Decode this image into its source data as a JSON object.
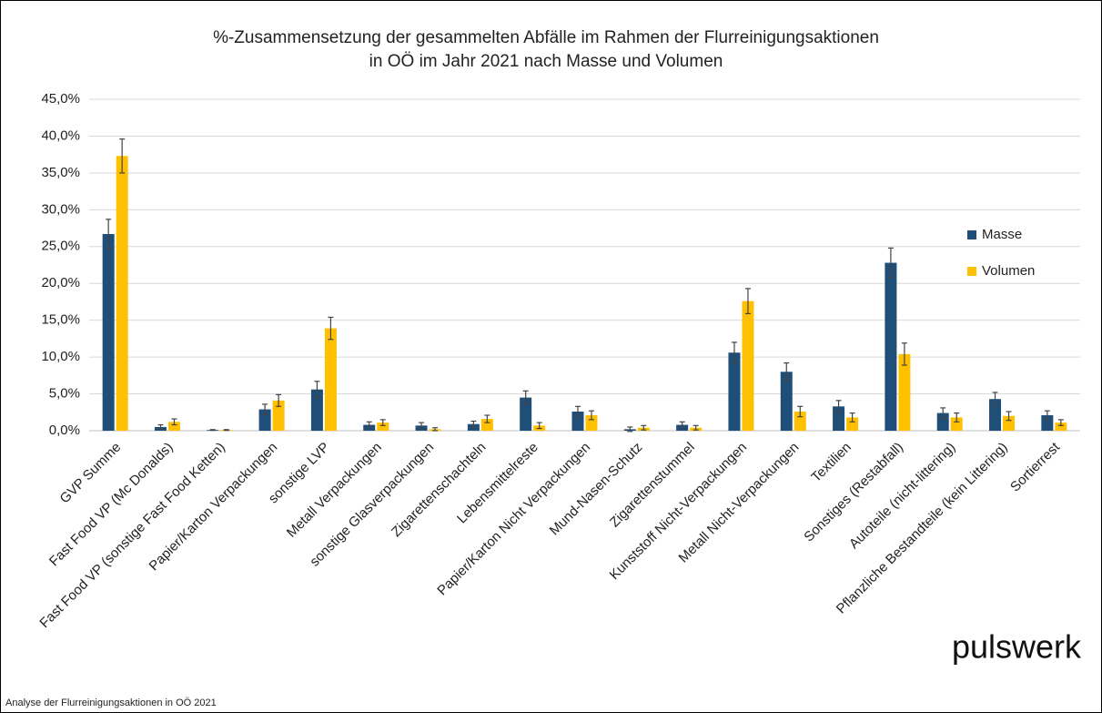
{
  "chart_data": {
    "type": "bar",
    "title": [
      "%-Zusammensetzung der gesammelten Abfälle im Rahmen der Flurreinigungsaktionen",
      "in OÖ im Jahr 2021 nach Masse und Volumen"
    ],
    "categories": [
      "GVP Summe",
      "Fast Food VP (Mc Donalds)",
      "Fast Food VP (sonstige Fast Food Ketten)",
      "Papier/Karton Verpackungen",
      "sonstige LVP",
      "Metall Verpackungen",
      "sonstige Glasverpackungen",
      "Zigarettenschachteln",
      "Lebensmittelreste",
      "Papier/Karton Nicht Verpackungen",
      "Mund-Nasen-Schutz",
      "Zigarettenstummel",
      "Kunststoff Nicht-Verpackungen",
      "Metall Nicht-Verpackungen",
      "Textilien",
      "Sonstiges (Restabfall)",
      "Autoteile (nicht-littering)",
      "Pflanzliche Bestandteile (kein Littering)",
      "Sortierrest"
    ],
    "series": [
      {
        "name": "Masse",
        "color": "#1f4e79",
        "values": [
          26.7,
          0.5,
          0.1,
          2.9,
          5.6,
          0.8,
          0.7,
          0.9,
          4.5,
          2.6,
          0.2,
          0.8,
          10.6,
          8.0,
          3.3,
          22.8,
          2.4,
          4.3,
          2.1
        ],
        "errors": [
          2.0,
          0.3,
          0.05,
          0.7,
          1.1,
          0.4,
          0.4,
          0.4,
          0.9,
          0.7,
          0.3,
          0.4,
          1.4,
          1.2,
          0.8,
          2.0,
          0.7,
          0.9,
          0.6
        ]
      },
      {
        "name": "Volumen",
        "color": "#ffc000",
        "values": [
          37.3,
          1.2,
          0.1,
          4.1,
          13.9,
          1.1,
          0.2,
          1.6,
          0.7,
          2.1,
          0.4,
          0.4,
          17.6,
          2.6,
          1.8,
          10.4,
          1.8,
          2.0,
          1.1
        ],
        "errors": [
          2.3,
          0.4,
          0.05,
          0.8,
          1.5,
          0.4,
          0.2,
          0.5,
          0.4,
          0.6,
          0.3,
          0.3,
          1.7,
          0.7,
          0.6,
          1.5,
          0.6,
          0.6,
          0.4
        ]
      }
    ],
    "ylim": [
      0,
      45
    ],
    "yticks": [
      {
        "value": 0,
        "label": "0,0%"
      },
      {
        "value": 5,
        "label": "5,0%"
      },
      {
        "value": 10,
        "label": "10,0%"
      },
      {
        "value": 15,
        "label": "15,0%"
      },
      {
        "value": 20,
        "label": "20,0%"
      },
      {
        "value": 25,
        "label": "25,0%"
      },
      {
        "value": 30,
        "label": "30,0%"
      },
      {
        "value": 35,
        "label": "35,0%"
      },
      {
        "value": 40,
        "label": "40,0%"
      },
      {
        "value": 45,
        "label": "45,0%"
      }
    ],
    "grid": true,
    "legend": "right",
    "logo": "pulswerk",
    "footnote": "Analyse der Flurreinigungsaktionen in OÖ 2021"
  }
}
